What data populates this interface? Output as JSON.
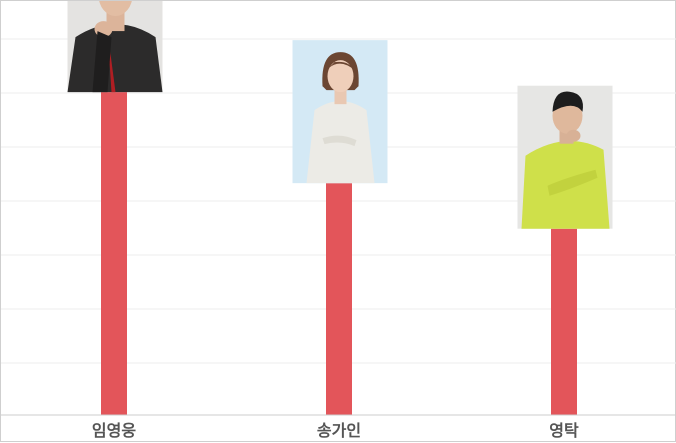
{
  "chart_data": {
    "type": "bar",
    "categories": [
      "임영웅",
      "송가인",
      "영탁"
    ],
    "values": [
      78,
      56,
      45
    ],
    "ylim": [
      0,
      100
    ],
    "grid": true,
    "bar_color": "#e3555a",
    "photo_icons": [
      "man-in-black-suit-photo-icon",
      "woman-in-white-dress-photo-icon",
      "man-in-lime-sweater-photo-icon"
    ]
  }
}
